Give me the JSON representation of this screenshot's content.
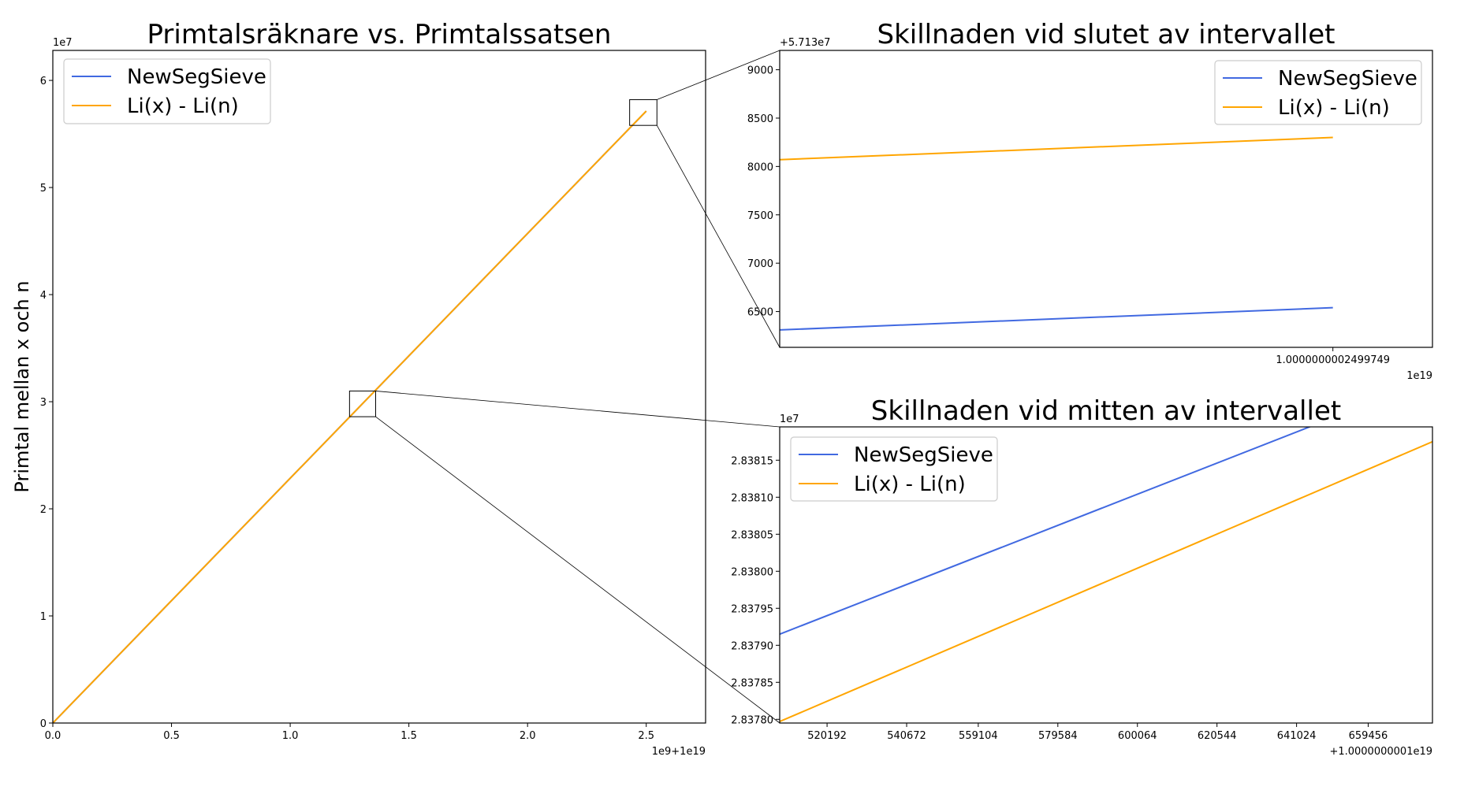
{
  "colors": {
    "newsegsieve": "#4169e1",
    "li": "#ffa500",
    "axes": "#000000",
    "background": "#ffffff"
  },
  "chart_data": [
    {
      "id": "main",
      "type": "line",
      "title": "Primtalsräknare vs. Primtalssatsen",
      "ylabel": "Primtal mellan x och n",
      "xlabel": "",
      "x_offset_label": "1e9+1e19",
      "y_offset_label": "1e7",
      "xlim": [
        0,
        2.75
      ],
      "ylim": [
        0,
        6.28
      ],
      "xticks": [
        0,
        0.5,
        1.0,
        1.5,
        2.0,
        2.5
      ],
      "xtick_labels": [
        "0.0",
        "0.5",
        "1.0",
        "1.5",
        "2.0",
        "2.5"
      ],
      "yticks": [
        0,
        1,
        2,
        3,
        4,
        5,
        6
      ],
      "ytick_labels": [
        "0",
        "1",
        "2",
        "3",
        "4",
        "5",
        "6"
      ],
      "legend_placement": "upper-left",
      "grid": false,
      "series": [
        {
          "name": "NewSegSieve",
          "color_key": "newsegsieve",
          "x": [
            0,
            2.5
          ],
          "y": [
            0,
            5.7136
          ]
        },
        {
          "name": "Li(x) - Li(n)",
          "color_key": "li",
          "x": [
            0,
            2.5
          ],
          "y": [
            0,
            5.7138
          ]
        }
      ],
      "zoom_boxes": [
        {
          "x": [
            2.43,
            2.545
          ],
          "y": [
            5.58,
            5.82
          ],
          "target": "end"
        },
        {
          "x": [
            1.25,
            1.36
          ],
          "y": [
            2.86,
            3.1
          ],
          "target": "mid"
        }
      ]
    },
    {
      "id": "end",
      "type": "line",
      "title": "Skillnaden vid slutet av intervallet",
      "x_offset_label": "1e19",
      "y_offset_label": "+5.713e7",
      "xlim": [
        0,
        1.18
      ],
      "ylim": [
        6130,
        9200
      ],
      "xticks": [
        1.0
      ],
      "xtick_labels": [
        "1.0000000002499749"
      ],
      "yticks": [
        6500,
        7000,
        7500,
        8000,
        8500,
        9000
      ],
      "ytick_labels": [
        "6500",
        "7000",
        "7500",
        "8000",
        "8500",
        "9000"
      ],
      "legend_placement": "upper-right",
      "grid": false,
      "series": [
        {
          "name": "NewSegSieve",
          "color_key": "newsegsieve",
          "x": [
            0,
            1.0
          ],
          "y": [
            6310,
            6540
          ]
        },
        {
          "name": "Li(x) - Li(n)",
          "color_key": "li",
          "x": [
            0,
            1.0
          ],
          "y": [
            8070,
            8300
          ]
        }
      ]
    },
    {
      "id": "mid",
      "type": "line",
      "title": "Skillnaden vid mitten av intervallet",
      "x_offset_label": "+1.0000000001e19",
      "y_offset_label": "1e7",
      "xlim": [
        508000,
        676000
      ],
      "ylim": [
        2.837795,
        2.838195
      ],
      "xticks": [
        520192,
        540672,
        559104,
        579584,
        600064,
        620544,
        641024,
        659456
      ],
      "xtick_labels": [
        "520192",
        "540672",
        "559104",
        "579584",
        "600064",
        "620544",
        "641024",
        "659456"
      ],
      "yticks": [
        2.8378,
        2.83785,
        2.8379,
        2.83795,
        2.838,
        2.83805,
        2.8381,
        2.83815
      ],
      "ytick_labels": [
        "2.83780",
        "2.83785",
        "2.83790",
        "2.83795",
        "2.83800",
        "2.83805",
        "2.83810",
        "2.83815"
      ],
      "legend_placement": "upper-left",
      "grid": false,
      "series": [
        {
          "name": "NewSegSieve",
          "color_key": "newsegsieve",
          "x": [
            508000,
            676000
          ],
          "y": [
            2.837915,
            2.83826
          ]
        },
        {
          "name": "Li(x) - Li(n)",
          "color_key": "li",
          "x": [
            508000,
            676000
          ],
          "y": [
            2.837797,
            2.838175
          ]
        }
      ]
    }
  ]
}
